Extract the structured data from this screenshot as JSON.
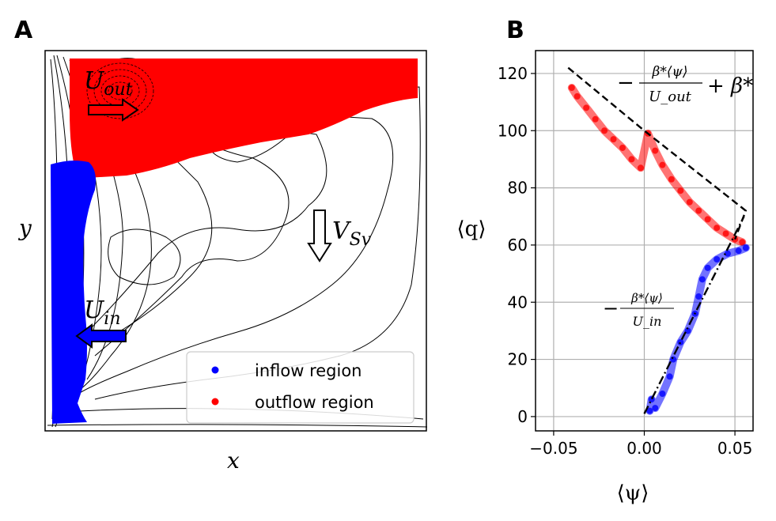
{
  "figure": {
    "panel_a_label": "A",
    "panel_b_label": "B"
  },
  "chart_data": [
    {
      "type": "contour",
      "panel": "A",
      "xlabel": "x",
      "ylabel": "y",
      "regions": [
        {
          "name": "inflow region",
          "color": "#0000ff"
        },
        {
          "name": "outflow region",
          "color": "#ff0000"
        }
      ],
      "legend": [
        "inflow region",
        "outflow region"
      ],
      "legend_position": "lower-right",
      "annotations": {
        "u_out": {
          "base": "U",
          "sub": "out"
        },
        "u_in": {
          "base": "U",
          "sub": "in"
        },
        "v_sv": {
          "base": "V",
          "sub": "Sv"
        }
      }
    },
    {
      "type": "scatter",
      "panel": "B",
      "xlabel": "⟨ψ⟩",
      "ylabel": "⟨q⟩",
      "xlim": [
        -0.06,
        0.06
      ],
      "ylim": [
        -5,
        128
      ],
      "xticks": [
        -0.05,
        0.0,
        0.05
      ],
      "xtick_labels": [
        "−0.05",
        "0.00",
        "0.05"
      ],
      "yticks": [
        0,
        20,
        40,
        60,
        80,
        100,
        120
      ],
      "ytick_labels": [
        "0",
        "20",
        "40",
        "60",
        "80",
        "100",
        "120"
      ],
      "grid": true,
      "series": [
        {
          "name": "outflow region",
          "color": "#ff0000",
          "points": [
            [
              -0.04,
              115
            ],
            [
              -0.037,
              112
            ],
            [
              -0.032,
              108
            ],
            [
              -0.027,
              104
            ],
            [
              -0.022,
              100
            ],
            [
              -0.017,
              97
            ],
            [
              -0.012,
              94
            ],
            [
              -0.007,
              90
            ],
            [
              -0.002,
              87
            ],
            [
              0.002,
              99
            ],
            [
              0.006,
              93
            ],
            [
              0.01,
              88
            ],
            [
              0.015,
              83
            ],
            [
              0.02,
              79
            ],
            [
              0.025,
              75
            ],
            [
              0.03,
              72
            ],
            [
              0.035,
              69
            ],
            [
              0.04,
              66
            ],
            [
              0.045,
              64
            ],
            [
              0.05,
              62
            ],
            [
              0.054,
              61
            ]
          ]
        },
        {
          "name": "inflow region",
          "color": "#0000ff",
          "points": [
            [
              0.003,
              2
            ],
            [
              0.004,
              6
            ],
            [
              0.006,
              3
            ],
            [
              0.01,
              8
            ],
            [
              0.014,
              14
            ],
            [
              0.016,
              20
            ],
            [
              0.02,
              26
            ],
            [
              0.024,
              30
            ],
            [
              0.028,
              36
            ],
            [
              0.03,
              42
            ],
            [
              0.032,
              48
            ],
            [
              0.035,
              52
            ],
            [
              0.04,
              55
            ],
            [
              0.046,
              57
            ],
            [
              0.052,
              58
            ],
            [
              0.056,
              59
            ]
          ]
        }
      ],
      "reference_lines": [
        {
          "name": "outflow-relation",
          "style": "dashed",
          "label_num": "β*⟨ψ⟩",
          "label_den": "U_out",
          "label_prefix": "−",
          "label_suffix": "+ β*",
          "x": [
            -0.042,
            0.0,
            0.056,
            0.05
          ],
          "y": [
            122,
            100,
            72,
            62
          ]
        },
        {
          "name": "inflow-relation",
          "style": "dashdot",
          "label_num": "β*⟨ψ⟩",
          "label_den": "U_in",
          "label_prefix": "−",
          "x": [
            0.0,
            0.055
          ],
          "y": [
            1,
            70
          ]
        }
      ]
    }
  ]
}
